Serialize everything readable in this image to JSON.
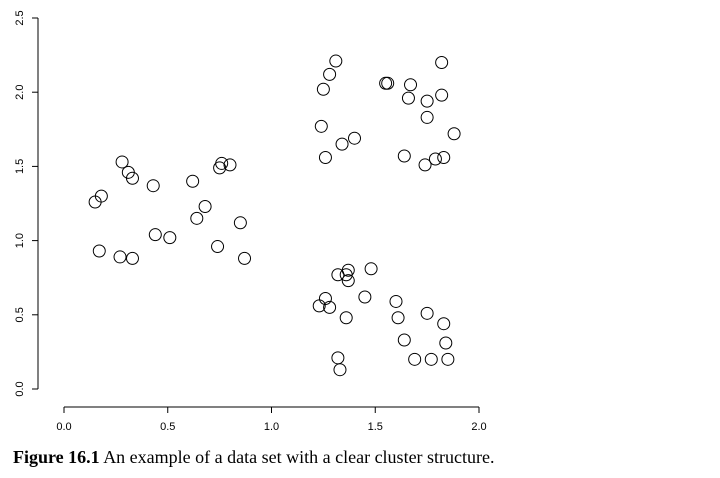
{
  "chart_data": {
    "type": "scatter",
    "title": "",
    "xlabel": "",
    "ylabel": "",
    "xlim": [
      0.0,
      2.0
    ],
    "ylim": [
      0.0,
      2.5
    ],
    "xticks": [
      "0.0",
      "0.5",
      "1.0",
      "1.5",
      "2.0"
    ],
    "yticks": [
      "0.0",
      "0.5",
      "1.0",
      "1.5",
      "2.0",
      "2.5"
    ],
    "grid": false,
    "marker": "open-circle",
    "points": [
      [
        0.28,
        1.53
      ],
      [
        0.31,
        1.46
      ],
      [
        0.33,
        1.42
      ],
      [
        0.43,
        1.37
      ],
      [
        0.18,
        1.3
      ],
      [
        0.15,
        1.26
      ],
      [
        0.62,
        1.4
      ],
      [
        0.68,
        1.23
      ],
      [
        0.64,
        1.15
      ],
      [
        0.85,
        1.12
      ],
      [
        0.44,
        1.04
      ],
      [
        0.51,
        1.02
      ],
      [
        0.17,
        0.93
      ],
      [
        0.27,
        0.89
      ],
      [
        0.33,
        0.88
      ],
      [
        0.74,
        0.96
      ],
      [
        0.87,
        0.88
      ],
      [
        0.75,
        1.49
      ],
      [
        0.76,
        1.52
      ],
      [
        0.8,
        1.51
      ],
      [
        1.31,
        2.21
      ],
      [
        1.28,
        2.12
      ],
      [
        1.25,
        2.02
      ],
      [
        1.82,
        2.2
      ],
      [
        1.55,
        2.06
      ],
      [
        1.56,
        2.06
      ],
      [
        1.67,
        2.05
      ],
      [
        1.66,
        1.96
      ],
      [
        1.75,
        1.94
      ],
      [
        1.82,
        1.98
      ],
      [
        1.75,
        1.83
      ],
      [
        1.24,
        1.77
      ],
      [
        1.88,
        1.72
      ],
      [
        1.4,
        1.69
      ],
      [
        1.34,
        1.65
      ],
      [
        1.26,
        1.56
      ],
      [
        1.64,
        1.57
      ],
      [
        1.74,
        1.51
      ],
      [
        1.79,
        1.55
      ],
      [
        1.83,
        1.56
      ],
      [
        1.37,
        0.8
      ],
      [
        1.36,
        0.77
      ],
      [
        1.32,
        0.77
      ],
      [
        1.37,
        0.73
      ],
      [
        1.48,
        0.81
      ],
      [
        1.26,
        0.61
      ],
      [
        1.23,
        0.56
      ],
      [
        1.28,
        0.55
      ],
      [
        1.45,
        0.62
      ],
      [
        1.6,
        0.59
      ],
      [
        1.36,
        0.48
      ],
      [
        1.61,
        0.48
      ],
      [
        1.75,
        0.51
      ],
      [
        1.83,
        0.44
      ],
      [
        1.64,
        0.33
      ],
      [
        1.84,
        0.31
      ],
      [
        1.32,
        0.21
      ],
      [
        1.33,
        0.13
      ],
      [
        1.69,
        0.2
      ],
      [
        1.77,
        0.2
      ],
      [
        1.85,
        0.2
      ]
    ]
  },
  "caption": {
    "label": "Figure 16.1",
    "text": "An example of a data set with a clear cluster structure."
  }
}
